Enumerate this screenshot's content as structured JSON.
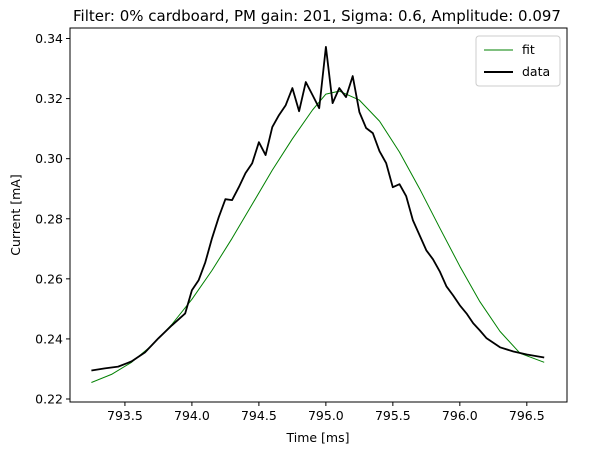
{
  "chart_data": {
    "type": "line",
    "title": "Filter: 0% cardboard, PM gain: 201, Sigma: 0.6, Amplitude: 0.097",
    "xlabel": "Time [ms]",
    "ylabel": "Current [mA]",
    "xlim": [
      793.09,
      796.8
    ],
    "ylim": [
      0.219,
      0.3435
    ],
    "xticks": [
      793.5,
      794.0,
      794.5,
      795.0,
      795.5,
      796.0,
      796.5
    ],
    "xtick_labels": [
      "793.5",
      "794.0",
      "794.5",
      "795.0",
      "795.5",
      "796.0",
      "796.5"
    ],
    "yticks": [
      0.22,
      0.24,
      0.26,
      0.28,
      0.3,
      0.32,
      0.34
    ],
    "ytick_labels": [
      "0.22",
      "0.24",
      "0.26",
      "0.28",
      "0.30",
      "0.32",
      "0.34"
    ],
    "legend_placement": "top-right",
    "grid": false,
    "series": [
      {
        "name": "fit",
        "color": "#008000",
        "x": [
          793.25,
          793.4,
          793.55,
          793.7,
          793.85,
          794.0,
          794.15,
          794.3,
          794.45,
          794.6,
          794.75,
          794.9,
          795.0,
          795.1,
          795.25,
          795.4,
          795.55,
          795.7,
          795.85,
          796.0,
          796.15,
          796.3,
          796.45,
          796.63
        ],
        "y": [
          0.2255,
          0.2282,
          0.2322,
          0.2378,
          0.2448,
          0.2532,
          0.2628,
          0.2735,
          0.2848,
          0.2962,
          0.3066,
          0.3162,
          0.3215,
          0.3225,
          0.3195,
          0.3125,
          0.3022,
          0.29,
          0.277,
          0.2642,
          0.2524,
          0.2425,
          0.2352,
          0.2322
        ]
      },
      {
        "name": "data",
        "color": "#000000",
        "x": [
          793.25,
          793.35,
          793.45,
          793.55,
          793.65,
          793.75,
          793.85,
          793.95,
          794.0,
          794.05,
          794.1,
          794.15,
          794.2,
          794.25,
          794.3,
          794.35,
          794.4,
          794.45,
          794.5,
          794.55,
          794.6,
          794.65,
          794.7,
          794.75,
          794.8,
          794.85,
          794.9,
          794.95,
          795.0,
          795.05,
          795.1,
          795.15,
          795.2,
          795.25,
          795.3,
          795.35,
          795.4,
          795.45,
          795.5,
          795.55,
          795.6,
          795.65,
          795.7,
          795.75,
          795.8,
          795.85,
          795.9,
          795.95,
          796.0,
          796.05,
          796.1,
          796.15,
          796.2,
          796.3,
          796.4,
          796.5,
          796.63
        ],
        "y": [
          0.2295,
          0.2302,
          0.2308,
          0.2325,
          0.2355,
          0.2402,
          0.2445,
          0.2485,
          0.2562,
          0.2595,
          0.2655,
          0.2735,
          0.2805,
          0.2865,
          0.2862,
          0.2905,
          0.2952,
          0.2985,
          0.3055,
          0.3012,
          0.3105,
          0.3145,
          0.3178,
          0.3235,
          0.3158,
          0.3255,
          0.3212,
          0.3168,
          0.3372,
          0.3185,
          0.3235,
          0.3205,
          0.3275,
          0.3155,
          0.3102,
          0.3085,
          0.3025,
          0.2985,
          0.2905,
          0.2915,
          0.2875,
          0.2795,
          0.2745,
          0.2695,
          0.2665,
          0.2625,
          0.2575,
          0.2545,
          0.2512,
          0.2485,
          0.2452,
          0.2428,
          0.2402,
          0.2372,
          0.2358,
          0.2348,
          0.2338
        ]
      }
    ]
  }
}
